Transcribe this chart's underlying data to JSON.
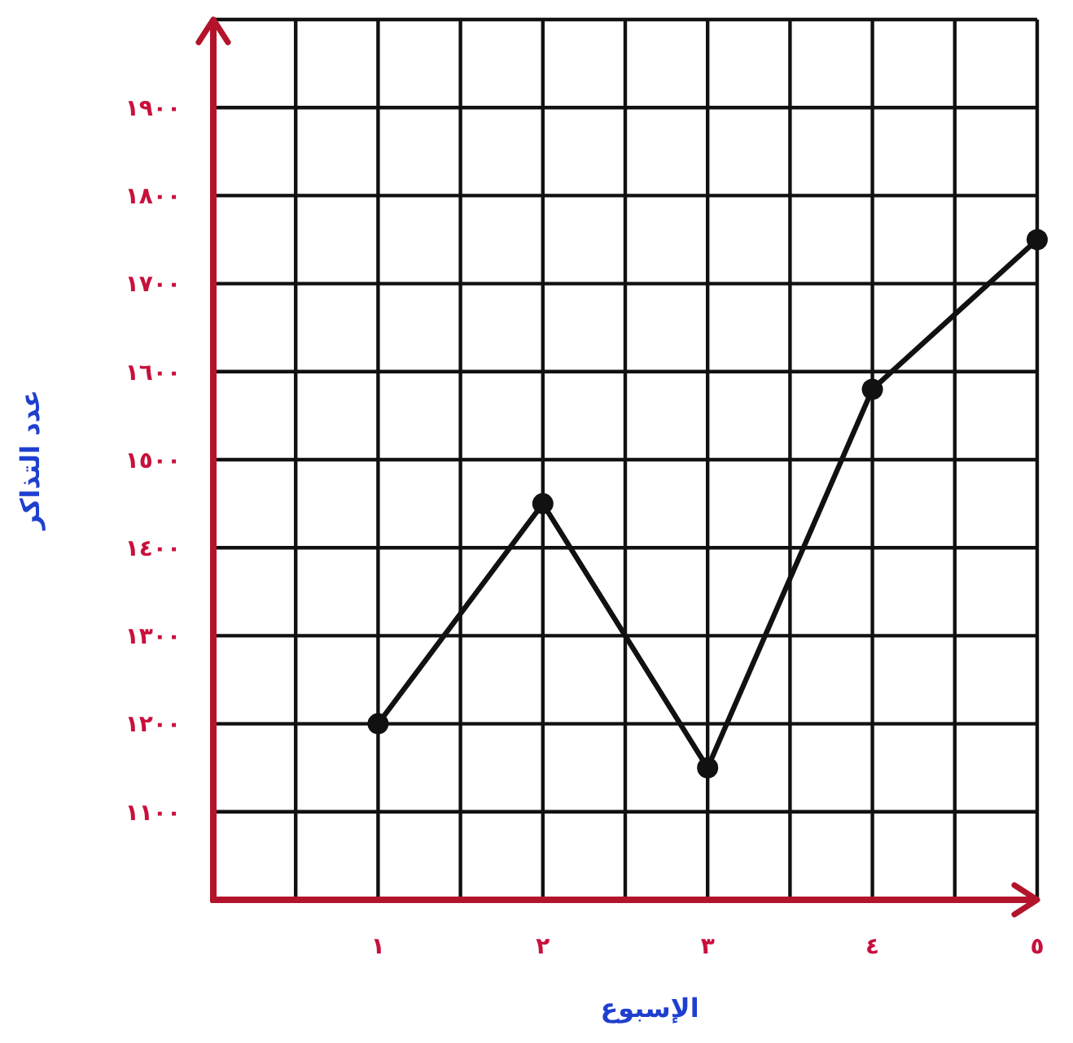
{
  "chart_data": {
    "type": "line",
    "xlabel": "الإسبوع",
    "ylabel": "عدد التذاكر",
    "x": [
      1,
      2,
      3,
      4,
      5
    ],
    "values": [
      1200,
      1450,
      1150,
      1580,
      1750
    ],
    "color": "#111111",
    "marker": "circle",
    "line_style": "solid",
    "grid": true,
    "xlim": [
      0,
      5
    ],
    "ylim": [
      1000,
      2000
    ],
    "xticks": [
      {
        "value": 0.5,
        "label": null
      },
      {
        "value": 1,
        "label": "١"
      },
      {
        "value": 1.5,
        "label": null
      },
      {
        "value": 2,
        "label": "٢"
      },
      {
        "value": 2.5,
        "label": null
      },
      {
        "value": 3,
        "label": "٣"
      },
      {
        "value": 3.5,
        "label": null
      },
      {
        "value": 4,
        "label": "٤"
      },
      {
        "value": 4.5,
        "label": null
      },
      {
        "value": 5,
        "label": "٥"
      }
    ],
    "yticks": [
      {
        "value": 1100,
        "label": "١١٠٠"
      },
      {
        "value": 1200,
        "label": "١٢٠٠"
      },
      {
        "value": 1300,
        "label": "١٣٠٠"
      },
      {
        "value": 1400,
        "label": "١٤٠٠"
      },
      {
        "value": 1500,
        "label": "١٥٠٠"
      },
      {
        "value": 1600,
        "label": "١٦٠٠"
      },
      {
        "value": 1700,
        "label": "١٧٠٠"
      },
      {
        "value": 1800,
        "label": "١٨٠٠"
      },
      {
        "value": 1900,
        "label": "١٩٠٠"
      }
    ]
  }
}
